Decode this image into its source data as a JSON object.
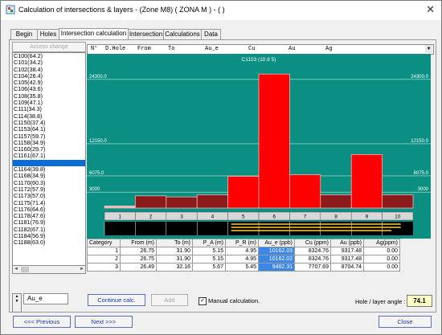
{
  "window": {
    "title": "Calculation of intersections & layers - (Zone M8) ( ZONA M ) - (  )",
    "close_glyph": "✕"
  },
  "tabs": [
    {
      "label": "Begin"
    },
    {
      "label": "Holes"
    },
    {
      "label": "Intersection calculation"
    },
    {
      "label": "Intersection"
    },
    {
      "label": "Calculations"
    },
    {
      "label": "Data"
    }
  ],
  "active_tab": 2,
  "access_change_label": "Access change",
  "hole_list": [
    "C100(64.2)",
    "C101(34.2)",
    "C102(38.4)",
    "C104(26.4)",
    "C105(42.9)",
    "C106(43.6)",
    "C108(35.8)",
    "C109(47.1)",
    "C111(34.3)",
    "C114(38.8)",
    "C1150(37.4)",
    "C1153(64.1)",
    "C1157(59.7)",
    "C1158(34.9)",
    "C1160(29.7)",
    "C1161(67.1)",
    "",
    "C1164(39.8)",
    "C1168(34.9)",
    "C1170(60.3)",
    "C1172(57.9)",
    "C1173(57.0)",
    "C1175(71.4)",
    "C1176(64.6)",
    "C1178(47.6)",
    "C1181(76.9)",
    "C1182(67.1)",
    "C1184(56.9)",
    "C1188(63.0)"
  ],
  "selected_index": 16,
  "grid_header": [
    "N°",
    "D.Hole",
    "From",
    "To",
    "Au_e",
    "Cu",
    "Au",
    "Ag"
  ],
  "chart_data": {
    "type": "bar",
    "title": "C1153 (10.8 5)",
    "categories": [
      "1",
      "2",
      "3",
      "4",
      "5",
      "6",
      "7",
      "8",
      "9",
      "10"
    ],
    "values": [
      400,
      2300,
      2100,
      2500,
      6000,
      25300,
      6300,
      2500,
      10100,
      2500
    ],
    "bar_colors": [
      "#ebb7b7",
      "#8c1a1a",
      "#8c1a1a",
      "#8c1a1a",
      "#ff0000",
      "#ff0000",
      "#ff0000",
      "#8c1a1a",
      "#ff0000",
      "#8c1a1a"
    ],
    "y_ticks": [
      "24300.0",
      "12150.0",
      "6075.0",
      "3000"
    ],
    "y_tick_values": [
      24300,
      12150,
      6075,
      3000
    ],
    "ylim": [
      0,
      27000
    ],
    "background": "#0a8f82",
    "highlight_range": [
      5,
      10
    ]
  },
  "table": {
    "headers": [
      "Category",
      "From (m)",
      "To (m)",
      "P_A (m)",
      "P_R (m)",
      "Au_e (ppb)",
      "Cu (ppm)",
      "Au (ppb)",
      "Ag(ppm)"
    ],
    "rows": [
      [
        "1",
        "26.75",
        "31.90",
        "5.15",
        "4.95",
        "10162.03",
        "8324.76",
        "9317.48",
        "0.00"
      ],
      [
        "2",
        "26.75",
        "31.90",
        "5.15",
        "4.95",
        "10162.03",
        "8324.76",
        "9317.48",
        "0.00"
      ],
      [
        "3",
        "26.49",
        "32.16",
        "5.67",
        "5.45",
        "9482.31",
        "7707.69",
        "8704.74",
        "0.00"
      ]
    ]
  },
  "element_combo": "Au_e",
  "buttons": {
    "continue": "Continue calc.",
    "add": "Add",
    "previous": "<<< Previous",
    "next": "Next >>>",
    "close": "Close"
  },
  "manual_calc": {
    "label": "Manual calculation.",
    "checked": true,
    "mark": "✓"
  },
  "angle": {
    "label": "Hole / layer angle :",
    "value": "74.1"
  },
  "scroll_glyphs": {
    "left": "◄",
    "right": "►",
    "up": "▲",
    "down": "▼"
  },
  "icons": {
    "app": "app-icon",
    "close": "close-icon",
    "dropdown": "chevron-down-icon"
  }
}
